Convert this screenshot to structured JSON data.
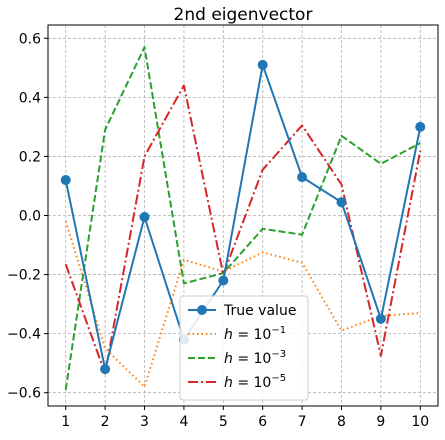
{
  "chart_data": {
    "type": "line",
    "title": "2nd eigenvector",
    "xlabel": "",
    "ylabel": "",
    "xlim": [
      0.55,
      10.45
    ],
    "ylim": [
      -0.645,
      0.645
    ],
    "xticks": [
      1,
      2,
      3,
      4,
      5,
      6,
      7,
      8,
      9,
      10
    ],
    "yticks": [
      -0.6,
      -0.4,
      -0.2,
      0.0,
      0.2,
      0.4,
      0.6
    ],
    "ytick_labels": [
      "−0.6",
      "−0.4",
      "−0.2",
      "0.0",
      "0.2",
      "0.4",
      "0.6"
    ],
    "grid": true,
    "legend_placement": "lower-center",
    "x": [
      1,
      2,
      3,
      4,
      5,
      6,
      7,
      8,
      9,
      10
    ],
    "series": [
      {
        "name": "True value",
        "color": "#1f77b4",
        "style": "solid-markers",
        "values": [
          0.12,
          -0.52,
          -0.005,
          -0.42,
          -0.22,
          0.51,
          0.13,
          0.045,
          -0.35,
          0.3
        ]
      },
      {
        "name": "h = 10^-1",
        "color": "#ff7f0e",
        "style": "dotted",
        "values": [
          -0.02,
          -0.45,
          -0.58,
          -0.15,
          -0.19,
          -0.125,
          -0.16,
          -0.39,
          -0.34,
          -0.33
        ]
      },
      {
        "name": "h = 10^-3",
        "color": "#2ca02c",
        "style": "dashed",
        "values": [
          -0.59,
          0.29,
          0.57,
          -0.23,
          -0.195,
          -0.045,
          -0.065,
          0.27,
          0.175,
          0.245
        ]
      },
      {
        "name": "h = 10^-5",
        "color": "#d62728",
        "style": "dashdot",
        "values": [
          -0.165,
          -0.535,
          0.2,
          0.44,
          -0.2,
          0.155,
          0.305,
          0.105,
          -0.475,
          0.22
        ]
      }
    ]
  },
  "legend": [
    {
      "kind": "plain",
      "text": "True value"
    },
    {
      "kind": "power",
      "base": "h = 10",
      "exp": "−1"
    },
    {
      "kind": "power",
      "base": "h = 10",
      "exp": "−3"
    },
    {
      "kind": "power",
      "base": "h = 10",
      "exp": "−5"
    }
  ]
}
